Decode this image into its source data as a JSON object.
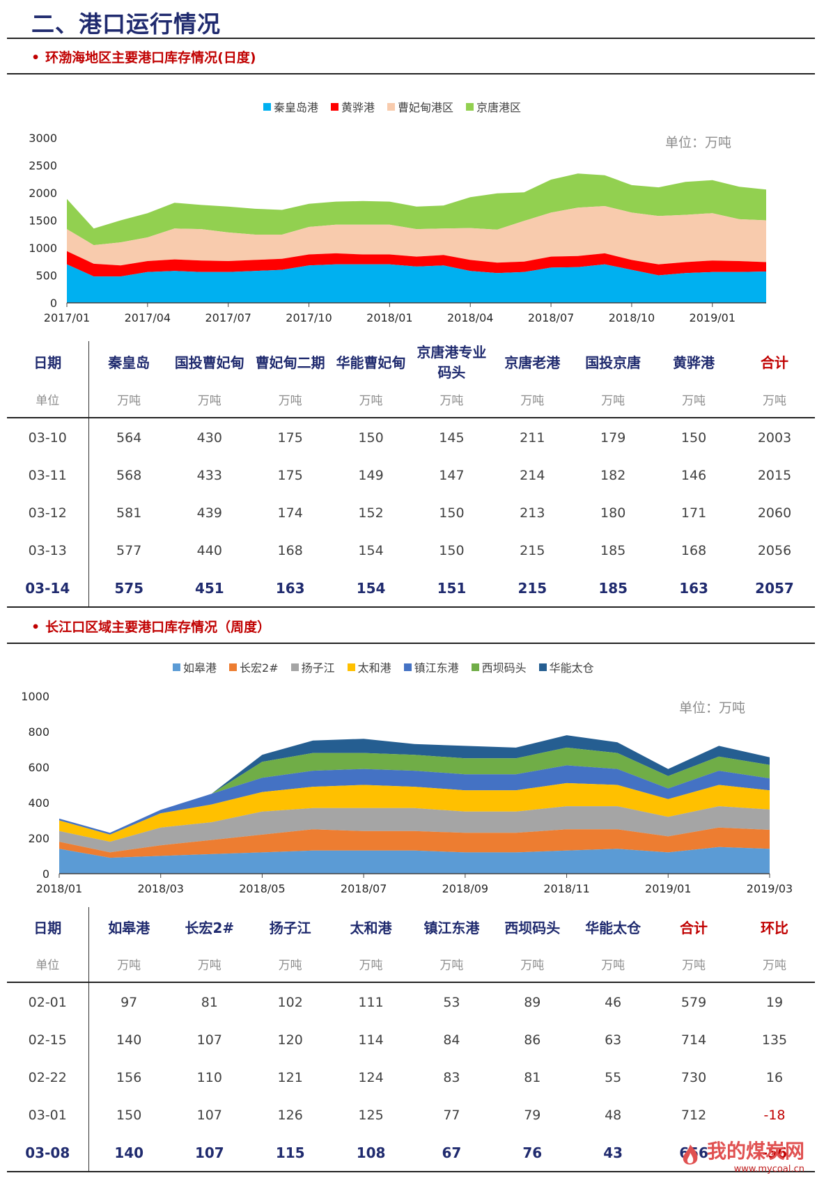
{
  "page_title": "二、港口运行情况",
  "section1": {
    "title": "环渤海地区主要港口库存情况(日度)",
    "unit_note": "单位：万吨",
    "legend": [
      {
        "label": "秦皇岛港",
        "color": "#00b0f0"
      },
      {
        "label": "黄骅港",
        "color": "#ff0000"
      },
      {
        "label": "曹妃甸港区",
        "color": "#f8cbad"
      },
      {
        "label": "京唐港区",
        "color": "#92d050"
      }
    ]
  },
  "table1": {
    "headers": [
      "日期",
      "秦皇岛",
      "国投曹妃甸",
      "曹妃甸二期",
      "华能曹妃甸",
      "京唐港专业码头",
      "京唐老港",
      "国投京唐",
      "黄骅港",
      "合计"
    ],
    "units": [
      "单位",
      "万吨",
      "万吨",
      "万吨",
      "万吨",
      "万吨",
      "万吨",
      "万吨",
      "万吨",
      "万吨"
    ],
    "rows": [
      [
        "03-10",
        "564",
        "430",
        "175",
        "150",
        "145",
        "211",
        "179",
        "150",
        "2003"
      ],
      [
        "03-11",
        "568",
        "433",
        "175",
        "149",
        "147",
        "214",
        "182",
        "146",
        "2015"
      ],
      [
        "03-12",
        "581",
        "439",
        "174",
        "152",
        "150",
        "213",
        "180",
        "171",
        "2060"
      ],
      [
        "03-13",
        "577",
        "440",
        "168",
        "154",
        "150",
        "215",
        "185",
        "168",
        "2056"
      ],
      [
        "03-14",
        "575",
        "451",
        "163",
        "154",
        "151",
        "215",
        "185",
        "163",
        "2057"
      ]
    ]
  },
  "section2": {
    "title": "长江口区域主要港口库存情况（周度）",
    "unit_note": "单位：万吨",
    "legend": [
      {
        "label": "如皋港",
        "color": "#5b9bd5"
      },
      {
        "label": "长宏2#",
        "color": "#ed7d31"
      },
      {
        "label": "扬子江",
        "color": "#a5a5a5"
      },
      {
        "label": "太和港",
        "color": "#ffc000"
      },
      {
        "label": "镇江东港",
        "color": "#4472c4"
      },
      {
        "label": "西坝码头",
        "color": "#70ad47"
      },
      {
        "label": "华能太仓",
        "color": "#255e91"
      }
    ]
  },
  "table2": {
    "headers": [
      "日期",
      "如皋港",
      "长宏2#",
      "扬子江",
      "太和港",
      "镇江东港",
      "西坝码头",
      "华能太仓",
      "合计",
      "环比"
    ],
    "units": [
      "单位",
      "万吨",
      "万吨",
      "万吨",
      "万吨",
      "万吨",
      "万吨",
      "万吨",
      "万吨",
      "万吨"
    ],
    "rows": [
      [
        "02-01",
        "97",
        "81",
        "102",
        "111",
        "53",
        "89",
        "46",
        "579",
        "19"
      ],
      [
        "02-15",
        "140",
        "107",
        "120",
        "114",
        "84",
        "86",
        "63",
        "714",
        "135"
      ],
      [
        "02-22",
        "156",
        "110",
        "121",
        "124",
        "83",
        "81",
        "55",
        "730",
        "16"
      ],
      [
        "03-01",
        "150",
        "107",
        "126",
        "125",
        "77",
        "79",
        "48",
        "712",
        "-18"
      ],
      [
        "03-08",
        "140",
        "107",
        "115",
        "108",
        "67",
        "76",
        "43",
        "656",
        "-56"
      ]
    ]
  },
  "watermark": {
    "text": "我的煤炭网",
    "url": "www.mycoal.cn"
  },
  "chart_data": [
    {
      "type": "area",
      "stacked": true,
      "x": [
        "2017/01",
        "2017/02",
        "2017/03",
        "2017/04",
        "2017/05",
        "2017/06",
        "2017/07",
        "2017/08",
        "2017/09",
        "2017/10",
        "2017/11",
        "2017/12",
        "2018/01",
        "2018/02",
        "2018/03",
        "2018/04",
        "2018/05",
        "2018/06",
        "2018/07",
        "2018/08",
        "2018/09",
        "2018/10",
        "2018/11",
        "2018/12",
        "2019/01",
        "2019/02",
        "2019/03"
      ],
      "x_tick_labels": [
        "2017/01",
        "2017/04",
        "2017/07",
        "2017/10",
        "2018/01",
        "2018/04",
        "2018/07",
        "2018/10",
        "2019/01"
      ],
      "ylim": [
        0,
        3000
      ],
      "y_ticks": [
        0,
        500,
        1000,
        1500,
        2000,
        2500,
        3000
      ],
      "series": [
        {
          "name": "秦皇岛港",
          "values": [
            700,
            480,
            480,
            560,
            580,
            560,
            560,
            580,
            600,
            680,
            700,
            700,
            700,
            660,
            680,
            580,
            540,
            560,
            640,
            650,
            700,
            600,
            500,
            540,
            560,
            560,
            570
          ]
        },
        {
          "name": "黄骅港",
          "values": [
            240,
            230,
            200,
            200,
            210,
            210,
            200,
            200,
            200,
            200,
            200,
            180,
            180,
            180,
            190,
            200,
            190,
            190,
            200,
            200,
            200,
            180,
            200,
            200,
            210,
            200,
            170
          ]
        },
        {
          "name": "曹妃甸港区",
          "values": [
            400,
            340,
            420,
            430,
            560,
            570,
            520,
            460,
            440,
            500,
            520,
            540,
            540,
            500,
            480,
            580,
            600,
            740,
            800,
            880,
            860,
            860,
            880,
            860,
            860,
            760,
            760
          ]
        },
        {
          "name": "京唐港区",
          "values": [
            550,
            300,
            400,
            440,
            470,
            440,
            470,
            470,
            450,
            420,
            420,
            430,
            420,
            410,
            420,
            560,
            660,
            520,
            600,
            620,
            560,
            500,
            520,
            600,
            600,
            590,
            560
          ]
        }
      ]
    },
    {
      "type": "area",
      "stacked": true,
      "x": [
        "2018/01",
        "2018/02",
        "2018/03",
        "2018/04",
        "2018/05",
        "2018/06",
        "2018/07",
        "2018/08",
        "2018/09",
        "2018/10",
        "2018/11",
        "2018/12",
        "2019/01",
        "2019/02",
        "2019/03"
      ],
      "x_tick_labels": [
        "2018/01",
        "2018/03",
        "2018/05",
        "2018/07",
        "2018/09",
        "2018/11",
        "2019/01",
        "2019/03"
      ],
      "ylim": [
        0,
        1000
      ],
      "y_ticks": [
        0,
        200,
        400,
        600,
        800,
        1000
      ],
      "series": [
        {
          "name": "如皋港",
          "values": [
            140,
            90,
            100,
            110,
            120,
            130,
            130,
            130,
            120,
            120,
            130,
            140,
            120,
            150,
            140
          ]
        },
        {
          "name": "长宏2#",
          "values": [
            40,
            30,
            60,
            80,
            100,
            120,
            110,
            110,
            110,
            110,
            120,
            110,
            90,
            110,
            107
          ]
        },
        {
          "name": "扬子江",
          "values": [
            60,
            60,
            100,
            100,
            130,
            120,
            130,
            130,
            120,
            120,
            130,
            130,
            110,
            120,
            115
          ]
        },
        {
          "name": "太和港",
          "values": [
            60,
            40,
            80,
            100,
            110,
            120,
            130,
            120,
            120,
            120,
            130,
            120,
            100,
            120,
            108
          ]
        },
        {
          "name": "镇江东港",
          "values": [
            10,
            10,
            20,
            60,
            80,
            90,
            90,
            90,
            90,
            90,
            100,
            90,
            60,
            80,
            67
          ]
        },
        {
          "name": "西坝码头",
          "values": [
            0,
            0,
            0,
            0,
            90,
            100,
            90,
            90,
            90,
            90,
            100,
            90,
            70,
            80,
            76
          ]
        },
        {
          "name": "华能太仓",
          "values": [
            0,
            0,
            0,
            0,
            40,
            70,
            80,
            60,
            70,
            60,
            70,
            60,
            40,
            60,
            43
          ]
        }
      ]
    }
  ]
}
